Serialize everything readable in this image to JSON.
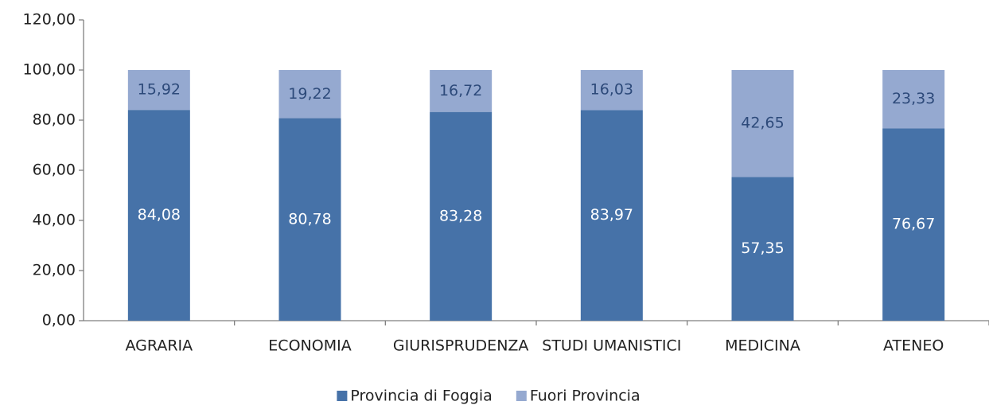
{
  "chart_data": {
    "type": "stacked_bar",
    "categories": [
      "AGRARIA",
      "ECONOMIA",
      "GIURISPRUDENZA",
      "STUDI UMANISTICI",
      "MEDICINA",
      "ATENEO"
    ],
    "series": [
      {
        "name": "Provincia di Foggia",
        "color": "#4672a8",
        "values": [
          84.08,
          80.78,
          83.28,
          83.97,
          57.35,
          76.67
        ],
        "value_labels": [
          "84,08",
          "80,78",
          "83,28",
          "83,97",
          "57,35",
          "76,67"
        ]
      },
      {
        "name": "Fuori Provincia",
        "color": "#95a9d0",
        "values": [
          15.92,
          19.22,
          16.72,
          16.03,
          42.65,
          23.33
        ],
        "value_labels": [
          "15,92",
          "19,22",
          "16,72",
          "16,03",
          "42,65",
          "23,33"
        ]
      }
    ],
    "ylim": [
      0,
      120
    ],
    "yticks": [
      {
        "value": 0,
        "label": "0,00"
      },
      {
        "value": 20,
        "label": "20,00"
      },
      {
        "value": 40,
        "label": "40,00"
      },
      {
        "value": 60,
        "label": "60,00"
      },
      {
        "value": 80,
        "label": "80,00"
      },
      {
        "value": 100,
        "label": "100,00"
      },
      {
        "value": 120,
        "label": "120,00"
      }
    ],
    "legend": "bottom"
  }
}
